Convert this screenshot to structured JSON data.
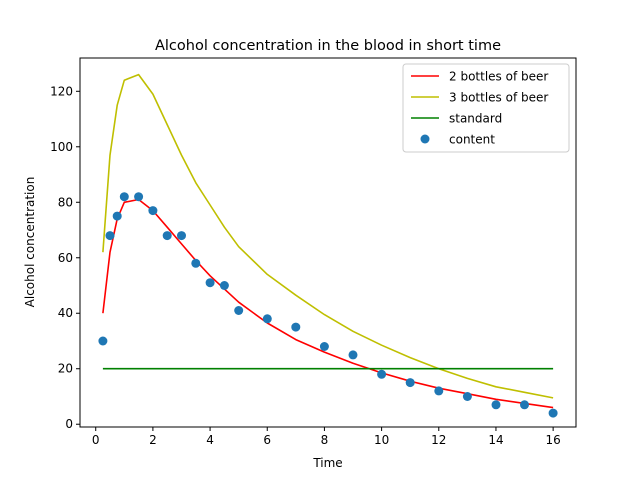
{
  "chart_data": {
    "type": "line",
    "title": "Alcohol concentration in the blood in short time",
    "xlabel": "Time",
    "ylabel": "Alcohol concentration",
    "xlim": [
      -0.55,
      16.8
    ],
    "ylim": [
      -1,
      132
    ],
    "xticks": [
      0,
      2,
      4,
      6,
      8,
      10,
      12,
      14,
      16
    ],
    "yticks": [
      0,
      20,
      40,
      60,
      80,
      100,
      120
    ],
    "grid": false,
    "legend_position": "top-right",
    "series": [
      {
        "name": "2 bottles of beer",
        "kind": "line",
        "color": "#ff0000",
        "x": [
          0.25,
          0.5,
          0.75,
          1.0,
          1.5,
          2.0,
          2.5,
          3.0,
          3.5,
          4.0,
          5.0,
          6.0,
          7.0,
          8.0,
          9.0,
          10.0,
          11.0,
          12.0,
          13.0,
          14.0,
          15.0,
          16.0
        ],
        "y": [
          40,
          62,
          74,
          80,
          81,
          77,
          71,
          65,
          59,
          53.5,
          44,
          36.5,
          30.5,
          26,
          22,
          18.5,
          15.5,
          13,
          11,
          9,
          7.5,
          6
        ]
      },
      {
        "name": "3 bottles of beer",
        "kind": "line",
        "color": "#bfbf00",
        "x": [
          0.25,
          0.5,
          0.75,
          1.0,
          1.5,
          2.0,
          2.5,
          3.0,
          3.5,
          4.0,
          4.5,
          5.0,
          6.0,
          7.0,
          8.0,
          9.0,
          10.0,
          11.0,
          12.0,
          13.0,
          14.0,
          15.0,
          16.0
        ],
        "y": [
          62,
          97,
          115,
          124,
          126,
          119,
          108,
          97,
          87,
          79,
          71,
          64,
          54,
          46.5,
          39.5,
          33.5,
          28.5,
          24,
          20,
          16.5,
          13.5,
          11.5,
          9.5
        ]
      },
      {
        "name": "standard",
        "kind": "line",
        "color": "#008000",
        "x": [
          0.25,
          16.0
        ],
        "y": [
          20,
          20
        ]
      },
      {
        "name": "content",
        "kind": "scatter",
        "color": "#1f77b4",
        "x": [
          0.25,
          0.5,
          0.75,
          1.0,
          1.5,
          2.0,
          2.5,
          3.0,
          3.5,
          4.0,
          4.5,
          5.0,
          6.0,
          7.0,
          8.0,
          9.0,
          10.0,
          11.0,
          12.0,
          13.0,
          14.0,
          15.0,
          16.0
        ],
        "y": [
          30,
          68,
          75,
          82,
          82,
          77,
          68,
          68,
          58,
          51,
          50,
          41,
          38,
          35,
          28,
          25,
          18,
          15,
          12,
          10,
          7,
          7,
          4
        ]
      }
    ]
  }
}
